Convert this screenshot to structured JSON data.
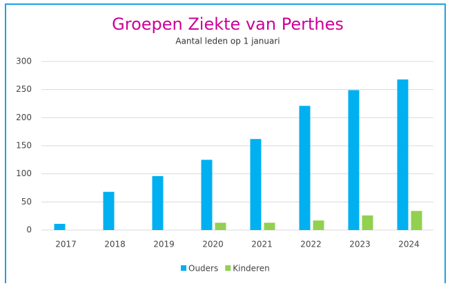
{
  "chart_data": {
    "type": "bar",
    "title": "Groepen Ziekte van Perthes",
    "subtitle": "Aantal leden op 1 januari",
    "categories": [
      "2017",
      "2018",
      "2019",
      "2020",
      "2021",
      "2022",
      "2023",
      "2024"
    ],
    "series": [
      {
        "name": "Ouders",
        "color": "#00b0f0",
        "values": [
          11,
          68,
          96,
          125,
          162,
          221,
          249,
          268
        ]
      },
      {
        "name": "Kinderen",
        "color": "#92d050",
        "values": [
          null,
          null,
          null,
          13,
          13,
          17,
          26,
          34
        ]
      }
    ],
    "ylim": [
      0,
      300
    ],
    "yticks": [
      0,
      50,
      100,
      150,
      200,
      250,
      300
    ],
    "grid": true,
    "legend": "bottom"
  }
}
